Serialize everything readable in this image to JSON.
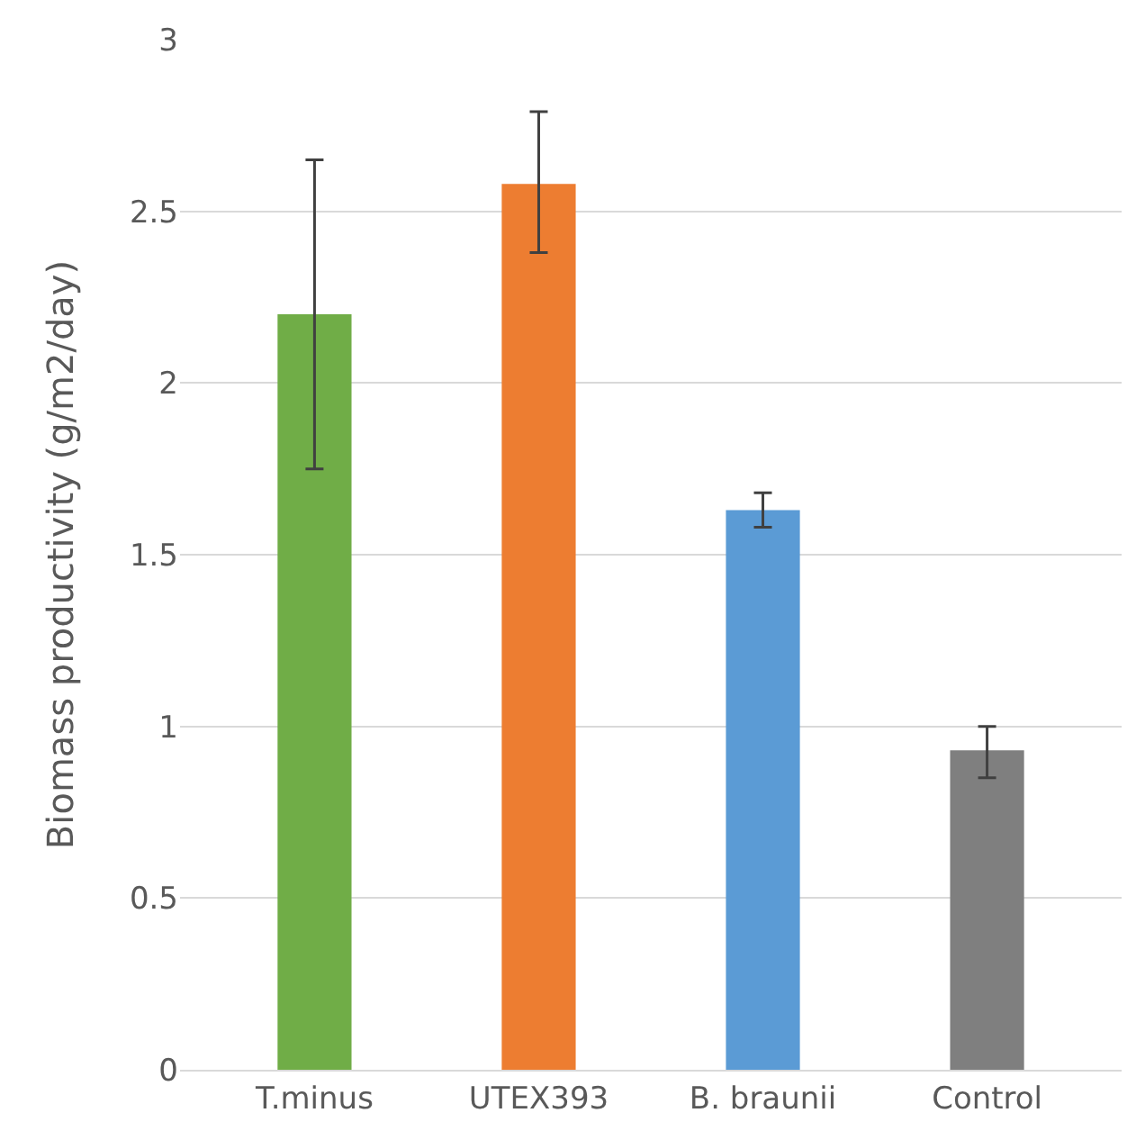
{
  "chart_data": {
    "type": "bar",
    "ylabel": "Biomass productivity (g/m2/day)",
    "categories": [
      "T.minus",
      "UTEX393",
      "B. braunii",
      "Control"
    ],
    "values": [
      2.2,
      2.58,
      1.63,
      0.93
    ],
    "colors": [
      "#70ad47",
      "#ed7d31",
      "#5b9bd5",
      "#7f7f7f"
    ],
    "errors": [
      [
        1.75,
        2.65
      ],
      [
        2.38,
        2.79
      ],
      [
        1.58,
        1.68
      ],
      [
        0.85,
        1.0
      ]
    ],
    "ylim": [
      0,
      3
    ],
    "yticks": [
      0,
      0.5,
      1,
      1.5,
      2,
      2.5,
      3
    ],
    "grid": "y"
  }
}
